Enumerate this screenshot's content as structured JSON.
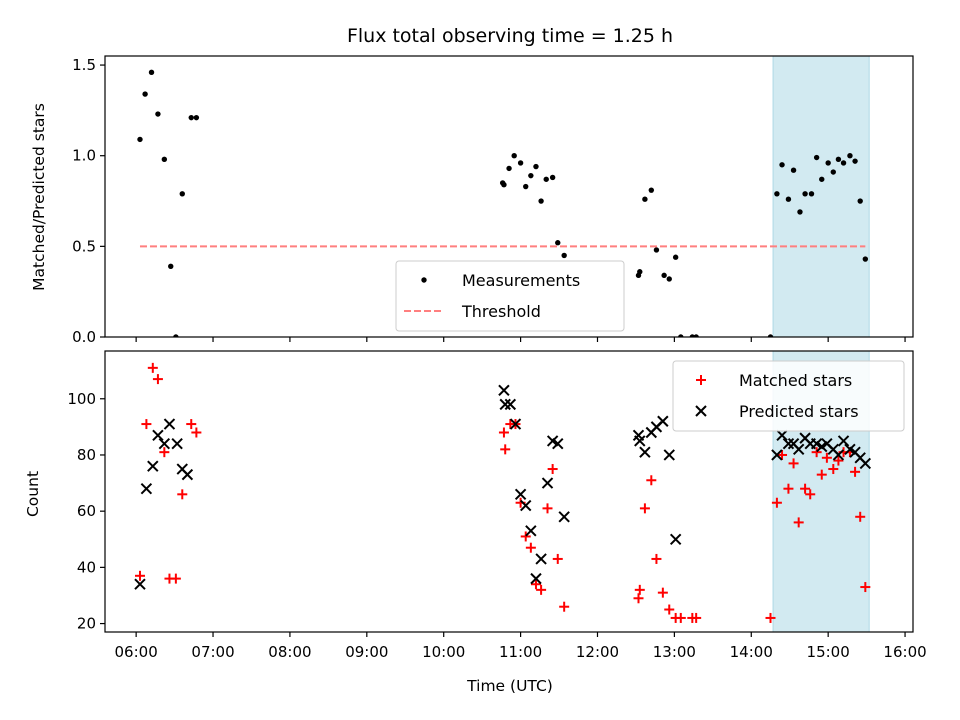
{
  "chart_data": {
    "title": "Flux total observing time = 1.25 h",
    "xlabel": "Time (UTC)",
    "x_ticks": [
      "06:00",
      "07:00",
      "08:00",
      "09:00",
      "10:00",
      "11:00",
      "12:00",
      "13:00",
      "14:00",
      "15:00",
      "16:00"
    ],
    "shaded_interval": [
      "14:17",
      "15:32"
    ],
    "shade_color": "#add8e6",
    "panels": [
      {
        "type": "scatter",
        "ylabel": "Matched/Predicted stars",
        "ylim": [
          0,
          1.55
        ],
        "y_ticks": [
          "0.0",
          "0.5",
          "1.0",
          "1.5"
        ],
        "legend_position": "lower-center",
        "series": [
          {
            "name": "Measurements",
            "marker": "dot",
            "color": "#000000",
            "points": [
              [
                "06:03",
                1.09
              ],
              [
                "06:07",
                1.34
              ],
              [
                "06:12",
                1.46
              ],
              [
                "06:17",
                1.23
              ],
              [
                "06:22",
                0.98
              ],
              [
                "06:27",
                0.39
              ],
              [
                "06:31",
                0.0
              ],
              [
                "06:36",
                0.79
              ],
              [
                "06:43",
                1.21
              ],
              [
                "06:47",
                1.21
              ],
              [
                "10:46",
                0.85
              ],
              [
                "10:47",
                0.84
              ],
              [
                "10:51",
                0.93
              ],
              [
                "10:55",
                1.0
              ],
              [
                "11:00",
                0.96
              ],
              [
                "11:04",
                0.83
              ],
              [
                "11:08",
                0.89
              ],
              [
                "11:12",
                0.94
              ],
              [
                "11:16",
                0.75
              ],
              [
                "11:20",
                0.87
              ],
              [
                "11:25",
                0.88
              ],
              [
                "11:29",
                0.52
              ],
              [
                "11:34",
                0.45
              ],
              [
                "12:32",
                0.34
              ],
              [
                "12:33",
                0.36
              ],
              [
                "12:37",
                0.76
              ],
              [
                "12:42",
                0.81
              ],
              [
                "12:46",
                0.48
              ],
              [
                "12:52",
                0.34
              ],
              [
                "12:56",
                0.32
              ],
              [
                "13:01",
                0.44
              ],
              [
                "13:05",
                0.0
              ],
              [
                "13:14",
                0.0
              ],
              [
                "13:17",
                0.0
              ],
              [
                "14:15",
                0.0
              ],
              [
                "14:20",
                0.79
              ],
              [
                "14:24",
                0.95
              ],
              [
                "14:29",
                0.76
              ],
              [
                "14:33",
                0.92
              ],
              [
                "14:38",
                0.69
              ],
              [
                "14:42",
                0.79
              ],
              [
                "14:47",
                0.79
              ],
              [
                "14:51",
                0.99
              ],
              [
                "14:55",
                0.87
              ],
              [
                "15:00",
                0.96
              ],
              [
                "15:04",
                0.91
              ],
              [
                "15:08",
                0.98
              ],
              [
                "15:12",
                0.96
              ],
              [
                "15:17",
                1.0
              ],
              [
                "15:21",
                0.97
              ],
              [
                "15:25",
                0.75
              ],
              [
                "15:29",
                0.43
              ]
            ]
          },
          {
            "name": "Threshold",
            "marker": "dashed-line",
            "color": "#ff7f7f",
            "y": 0.5,
            "x_range": [
              "06:03",
              "15:29"
            ]
          }
        ]
      },
      {
        "type": "scatter",
        "ylabel": "Count",
        "ylim": [
          17,
          117
        ],
        "y_ticks": [
          "20",
          "40",
          "60",
          "80",
          "100"
        ],
        "legend_position": "top-right",
        "series": [
          {
            "name": "Matched stars",
            "marker": "plus",
            "color": "#ff0000",
            "points": [
              [
                "06:03",
                37
              ],
              [
                "06:08",
                91
              ],
              [
                "06:13",
                111
              ],
              [
                "06:17",
                107
              ],
              [
                "06:22",
                81
              ],
              [
                "06:26",
                36
              ],
              [
                "06:31",
                36
              ],
              [
                "06:36",
                66
              ],
              [
                "06:43",
                91
              ],
              [
                "06:47",
                88
              ],
              [
                "10:47",
                88
              ],
              [
                "10:48",
                82
              ],
              [
                "10:52",
                91
              ],
              [
                "10:56",
                91
              ],
              [
                "11:00",
                63
              ],
              [
                "11:04",
                51
              ],
              [
                "11:08",
                47
              ],
              [
                "11:12",
                34
              ],
              [
                "11:16",
                32
              ],
              [
                "11:21",
                61
              ],
              [
                "11:25",
                75
              ],
              [
                "11:29",
                43
              ],
              [
                "11:34",
                26
              ],
              [
                "12:32",
                29
              ],
              [
                "12:33",
                32
              ],
              [
                "12:37",
                61
              ],
              [
                "12:42",
                71
              ],
              [
                "12:46",
                43
              ],
              [
                "12:51",
                31
              ],
              [
                "12:56",
                25
              ],
              [
                "13:01",
                22
              ],
              [
                "13:05",
                22
              ],
              [
                "13:14",
                22
              ],
              [
                "13:17",
                22
              ],
              [
                "14:15",
                22
              ],
              [
                "14:20",
                63
              ],
              [
                "14:24",
                80
              ],
              [
                "14:29",
                68
              ],
              [
                "14:33",
                77
              ],
              [
                "14:37",
                56
              ],
              [
                "14:42",
                68
              ],
              [
                "14:46",
                66
              ],
              [
                "14:51",
                81
              ],
              [
                "14:55",
                73
              ],
              [
                "14:59",
                79
              ],
              [
                "15:04",
                75
              ],
              [
                "15:08",
                78
              ],
              [
                "15:12",
                81
              ],
              [
                "15:17",
                81
              ],
              [
                "15:21",
                74
              ],
              [
                "15:25",
                58
              ],
              [
                "15:29",
                33
              ]
            ]
          },
          {
            "name": "Predicted stars",
            "marker": "x",
            "color": "#000000",
            "points": [
              [
                "06:03",
                34
              ],
              [
                "06:08",
                68
              ],
              [
                "06:13",
                76
              ],
              [
                "06:17",
                87
              ],
              [
                "06:22",
                84
              ],
              [
                "06:26",
                91
              ],
              [
                "06:32",
                84
              ],
              [
                "06:36",
                75
              ],
              [
                "06:40",
                73
              ],
              [
                "10:47",
                103
              ],
              [
                "10:48",
                98
              ],
              [
                "10:52",
                98
              ],
              [
                "10:56",
                91
              ],
              [
                "11:00",
                66
              ],
              [
                "11:04",
                62
              ],
              [
                "11:08",
                53
              ],
              [
                "11:12",
                36
              ],
              [
                "11:16",
                43
              ],
              [
                "11:21",
                70
              ],
              [
                "11:25",
                85
              ],
              [
                "11:29",
                84
              ],
              [
                "11:34",
                58
              ],
              [
                "12:32",
                87
              ],
              [
                "12:33",
                85
              ],
              [
                "12:37",
                81
              ],
              [
                "12:42",
                88
              ],
              [
                "12:46",
                90
              ],
              [
                "12:51",
                92
              ],
              [
                "12:56",
                80
              ],
              [
                "13:01",
                50
              ],
              [
                "14:20",
                80
              ],
              [
                "14:24",
                87
              ],
              [
                "14:29",
                84
              ],
              [
                "14:33",
                84
              ],
              [
                "14:37",
                82
              ],
              [
                "14:42",
                86
              ],
              [
                "14:46",
                84
              ],
              [
                "14:51",
                84
              ],
              [
                "14:55",
                83
              ],
              [
                "14:59",
                84
              ],
              [
                "15:04",
                82
              ],
              [
                "15:08",
                80
              ],
              [
                "15:12",
                85
              ],
              [
                "15:17",
                82
              ],
              [
                "15:21",
                81
              ],
              [
                "15:25",
                79
              ],
              [
                "15:29",
                77
              ]
            ]
          }
        ]
      }
    ]
  }
}
